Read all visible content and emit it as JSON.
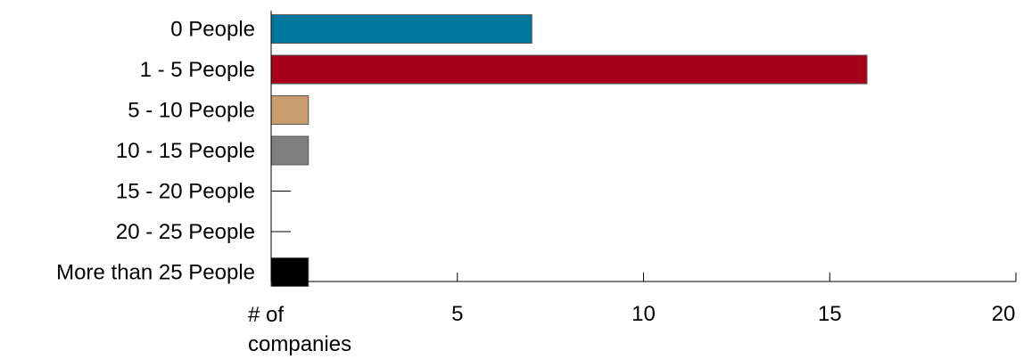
{
  "chart_data": {
    "type": "bar",
    "orientation": "horizontal",
    "categories": [
      "0 People",
      "1 - 5 People",
      "5 - 10 People",
      "10 - 15 People",
      "15 - 20 People",
      "20 - 25 People",
      "More than 25 People"
    ],
    "values": [
      7,
      16,
      1,
      1,
      0,
      0,
      1
    ],
    "colors": [
      "#00789e",
      "#a8001a",
      "#c99d70",
      "#7f7f7f",
      "#000000",
      "#000000",
      "#000000"
    ],
    "xlabel_lines": [
      "# of",
      "companies"
    ],
    "xlim": [
      0,
      20
    ],
    "xticks": [
      5,
      10,
      15,
      20
    ],
    "grid": false
  }
}
